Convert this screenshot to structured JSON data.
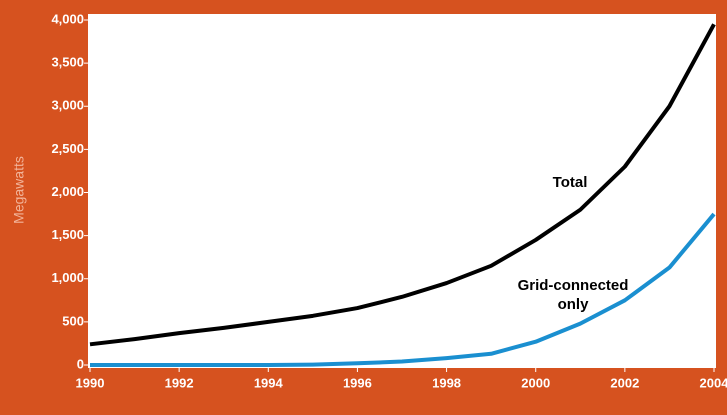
{
  "chart_data": {
    "type": "line",
    "ylabel": "Megawatts",
    "x": [
      1990,
      1991,
      1992,
      1993,
      1994,
      1995,
      1996,
      1997,
      1998,
      1999,
      2000,
      2001,
      2002,
      2003,
      2004
    ],
    "series": [
      {
        "name": "Total",
        "color": "#000000",
        "values": [
          240,
          300,
          370,
          430,
          500,
          570,
          660,
          790,
          950,
          1150,
          1450,
          1800,
          2300,
          3000,
          3950
        ]
      },
      {
        "name": "Grid-connected only",
        "color": "#1a8fd0",
        "values": [
          0,
          0,
          0,
          0,
          0,
          5,
          20,
          40,
          80,
          130,
          270,
          480,
          750,
          1130,
          1750
        ]
      }
    ],
    "xlim": [
      1990,
      2004
    ],
    "xticks": [
      1990,
      1992,
      1994,
      1996,
      1998,
      2000,
      2002,
      2004
    ],
    "ylim": [
      0,
      4000
    ],
    "yticks": [
      0,
      500,
      {
        "value": 1000,
        "label": "1,000"
      },
      {
        "value": 1500,
        "label": "1,500"
      },
      {
        "value": 2000,
        "label": "2,000"
      },
      {
        "value": 2500,
        "label": "2,500"
      },
      {
        "value": 3000,
        "label": "3,000"
      },
      {
        "value": 3500,
        "label": "3,500"
      },
      {
        "value": 4000,
        "label": "4,000"
      }
    ]
  }
}
